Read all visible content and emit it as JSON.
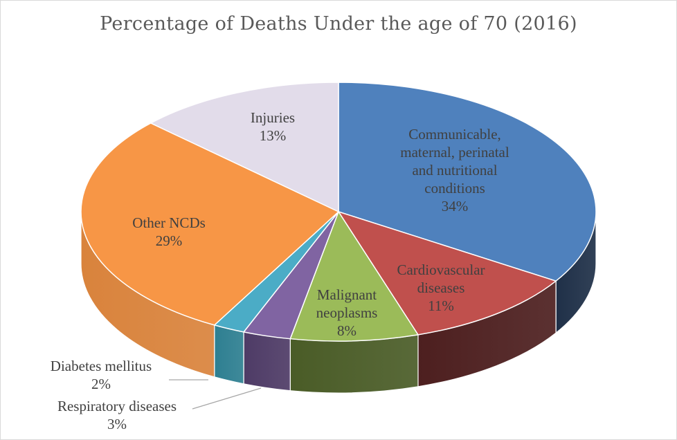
{
  "chart_data": {
    "type": "pie",
    "title": "Percentage of Deaths Under the age of 70 (2016)",
    "style": "3d-pie",
    "slices": [
      {
        "name": "Communicable, maternal, perinatal and nutritional conditions",
        "label_lines": [
          "Communicable,",
          "maternal, perinatal",
          "and nutritional",
          "conditions"
        ],
        "value": 34,
        "label": "34%",
        "color": "#4F81BD",
        "side_color": "#1F3048",
        "label_position": "inside"
      },
      {
        "name": "Cardiovascular diseases",
        "label_lines": [
          "Cardiovascular",
          "diseases"
        ],
        "value": 11,
        "label": "11%",
        "color": "#C0504D",
        "side_color": "#4D1F1F",
        "label_position": "inside"
      },
      {
        "name": "Malignant neoplasms",
        "label_lines": [
          "Malignant",
          "neoplasms"
        ],
        "value": 8,
        "label": "8%",
        "color": "#9BBB59",
        "side_color": "#4A5C27",
        "label_position": "inside"
      },
      {
        "name": "Respiratory diseases",
        "label_lines": [
          "Respiratory diseases"
        ],
        "value": 3,
        "label": "3%",
        "color": "#8064A2",
        "side_color": "#4E3B66",
        "label_position": "outside"
      },
      {
        "name": "Diabetes mellitus",
        "label_lines": [
          "Diabetes mellitus"
        ],
        "value": 2,
        "label": "2%",
        "color": "#4BACC6",
        "side_color": "#2E7F91",
        "label_position": "outside"
      },
      {
        "name": "Other NCDs",
        "label_lines": [
          "Other NCDs"
        ],
        "value": 29,
        "label": "29%",
        "color": "#F79646",
        "side_color": "#D9833C",
        "label_position": "inside"
      },
      {
        "name": "Injuries",
        "label_lines": [
          "Injuries"
        ],
        "value": 13,
        "label": "13%",
        "color": "#E2DCEA",
        "side_color": "#C9C2D3",
        "label_position": "inside"
      }
    ],
    "legend": "none"
  }
}
